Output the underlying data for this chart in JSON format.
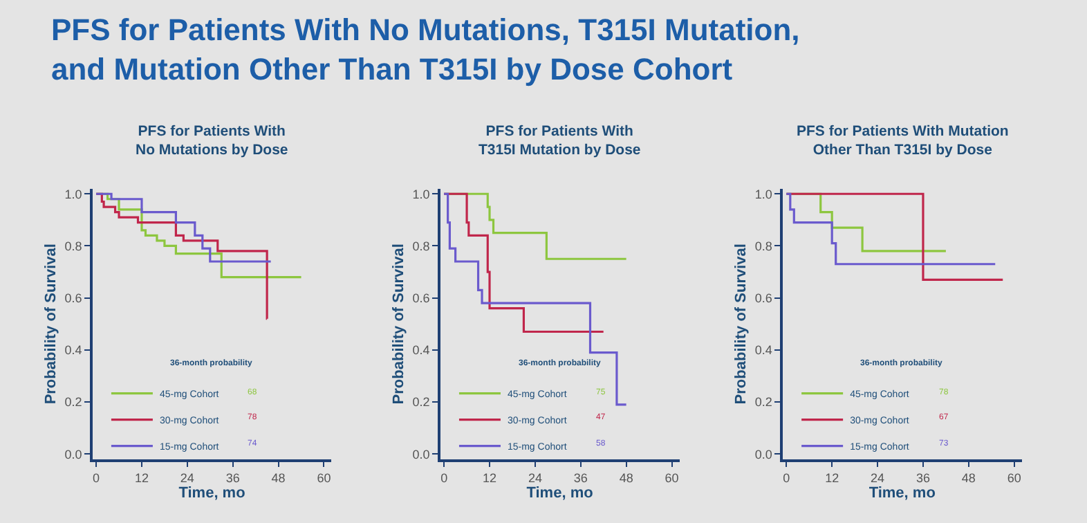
{
  "chart_data": [
    {
      "type": "step",
      "title": "PFS for Patients With\nNo Mutations by Dose",
      "xlabel": "Time, mo",
      "ylabel": "Probability of Survival",
      "xlim": [
        -1,
        62
      ],
      "ylim": [
        -0.02,
        1.02
      ],
      "xticks": [
        0,
        12,
        24,
        36,
        48,
        60
      ],
      "yticks": [
        {
          "value": 0,
          "label": "0.0"
        },
        {
          "value": 0.2,
          "label": "0.2"
        },
        {
          "value": 0.4,
          "label": "0.4"
        },
        {
          "value": 0.6,
          "label": "0.6"
        },
        {
          "value": 0.8,
          "label": "0.8"
        },
        {
          "value": 1,
          "label": "1.0"
        }
      ],
      "grid": false,
      "legend": "bottom left",
      "annotations": [
        "PFS for Patients With No Mutations, T315I Mutation,\nand Mutation Other Than T315I by Dose Cohort",
        "36-month probability",
        "68",
        "78",
        "74"
      ],
      "series": [
        {
          "name": "45-mg Cohort",
          "color": "#8dc63f",
          "x": [
            0,
            3,
            6,
            12,
            13,
            16,
            18,
            21,
            33,
            54
          ],
          "values": [
            1,
            0.98,
            0.94,
            0.86,
            0.84,
            0.82,
            0.8,
            0.77,
            0.68,
            0.68
          ]
        },
        {
          "name": "30-mg Cohort",
          "color": "#c0264b",
          "x": [
            0,
            1.5,
            2,
            5,
            6,
            11,
            21,
            23,
            32,
            45,
            45.01
          ],
          "values": [
            1,
            0.97,
            0.95,
            0.93,
            0.91,
            0.89,
            0.84,
            0.82,
            0.78,
            0.52,
            0.52
          ]
        },
        {
          "name": "15-mg Cohort",
          "color": "#6a5acd",
          "x": [
            0,
            4,
            12,
            21,
            26,
            28,
            30,
            46
          ],
          "values": [
            1,
            0.98,
            0.93,
            0.89,
            0.84,
            0.79,
            0.74,
            0.74
          ]
        }
      ]
    },
    {
      "type": "step",
      "title": "PFS for Patients With\nT315I Mutation by Dose",
      "xlabel": "Time, mo",
      "ylabel": "Probability of Survival",
      "xlim": [
        -1,
        62
      ],
      "ylim": [
        -0.02,
        1.02
      ],
      "xticks": [
        0,
        12,
        24,
        36,
        48,
        60
      ],
      "yticks": [
        {
          "value": 0,
          "label": "0.0"
        },
        {
          "value": 0.2,
          "label": "0.2"
        },
        {
          "value": 0.4,
          "label": "0.4"
        },
        {
          "value": 0.6,
          "label": "0.6"
        },
        {
          "value": 0.8,
          "label": "0.8"
        },
        {
          "value": 1,
          "label": "1.0"
        }
      ],
      "grid": false,
      "legend": "bottom left",
      "annotations": [
        "36-month probability",
        "75",
        "47",
        "58"
      ],
      "series": [
        {
          "name": "45-mg Cohort",
          "color": "#8dc63f",
          "x": [
            0,
            11.5,
            12,
            13,
            27,
            48
          ],
          "values": [
            1,
            0.95,
            0.9,
            0.85,
            0.75,
            0.75
          ]
        },
        {
          "name": "30-mg Cohort",
          "color": "#c0264b",
          "x": [
            0,
            6,
            6.5,
            11.5,
            12,
            21,
            42
          ],
          "values": [
            1,
            0.89,
            0.84,
            0.7,
            0.56,
            0.47,
            0.47
          ]
        },
        {
          "name": "15-mg Cohort",
          "color": "#6a5acd",
          "x": [
            0,
            1,
            1.5,
            3,
            9,
            10,
            38.5,
            45.5,
            48
          ],
          "values": [
            1,
            0.89,
            0.79,
            0.74,
            0.63,
            0.58,
            0.39,
            0.19,
            0.19
          ]
        }
      ]
    },
    {
      "type": "step",
      "title": "PFS for Patients With Mutation\nOther Than T315I by Dose",
      "xlabel": "Time, mo",
      "ylabel": "Probability of Survival",
      "xlim": [
        -1,
        62
      ],
      "ylim": [
        -0.02,
        1.02
      ],
      "xticks": [
        0,
        12,
        24,
        36,
        48,
        60
      ],
      "yticks": [
        {
          "value": 0,
          "label": "0.0"
        },
        {
          "value": 0.2,
          "label": "0.2"
        },
        {
          "value": 0.4,
          "label": "0.4"
        },
        {
          "value": 0.6,
          "label": "0.6"
        },
        {
          "value": 0.8,
          "label": "0.8"
        },
        {
          "value": 1,
          "label": "1.0"
        }
      ],
      "grid": false,
      "legend": "bottom left",
      "annotations": [
        "36-month probability",
        "78",
        "67",
        "73"
      ],
      "series": [
        {
          "name": "45-mg Cohort",
          "color": "#8dc63f",
          "x": [
            0,
            9,
            12,
            20,
            42
          ],
          "values": [
            1,
            0.93,
            0.87,
            0.78,
            0.78
          ]
        },
        {
          "name": "30-mg Cohort",
          "color": "#c0264b",
          "x": [
            0,
            36,
            57
          ],
          "values": [
            1,
            0.67,
            0.67
          ]
        },
        {
          "name": "15-mg Cohort",
          "color": "#6a5acd",
          "x": [
            0,
            1,
            2,
            12,
            13,
            55
          ],
          "values": [
            1,
            0.94,
            0.89,
            0.81,
            0.73,
            0.73
          ]
        }
      ]
    }
  ]
}
